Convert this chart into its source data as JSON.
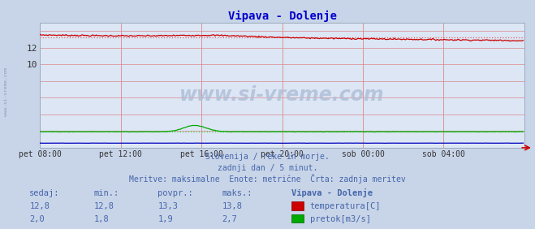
{
  "title": "Vipava - Dolenje",
  "title_color": "#0000cc",
  "bg_color": "#c8d4e8",
  "plot_bg_color": "#dce6f5",
  "x_labels": [
    "pet 08:00",
    "pet 12:00",
    "pet 16:00",
    "pet 20:00",
    "sob 00:00",
    "sob 04:00"
  ],
  "x_ticks_pos": [
    0,
    72,
    144,
    216,
    288,
    360
  ],
  "x_max": 432,
  "y_min": 0,
  "y_max": 15.0,
  "y_ticks": [
    10,
    12
  ],
  "temp_avg": 13.3,
  "flow_avg": 1.9,
  "temp_color": "#cc0000",
  "flow_color": "#00aa00",
  "height_color": "#0000bb",
  "temp_avg_color": "#dd6666",
  "flow_avg_color": "#44cc44",
  "grid_color_v": "#dd8888",
  "grid_color_h": "#dd8888",
  "watermark": "www.si-vreme.com",
  "footer_line1": "Slovenija / reke in morje.",
  "footer_line2": "zadnji dan / 5 minut.",
  "footer_line3": "Meritve: maksimalne  Enote: metrične  Črta: zadnja meritev",
  "footer_color": "#4466aa",
  "table_headers": [
    "sedaj:",
    "min.:",
    "povpr.:",
    "maks.:",
    "Vipava - Dolenje"
  ],
  "row1_vals": [
    "12,8",
    "12,8",
    "13,3",
    "13,8"
  ],
  "row2_vals": [
    "2,0",
    "1,8",
    "1,9",
    "2,7"
  ],
  "legend1_label": "temperatura[C]",
  "legend2_label": "pretok[m3/s]",
  "table_color": "#4466aa",
  "side_label": "www.si-vreme.com"
}
